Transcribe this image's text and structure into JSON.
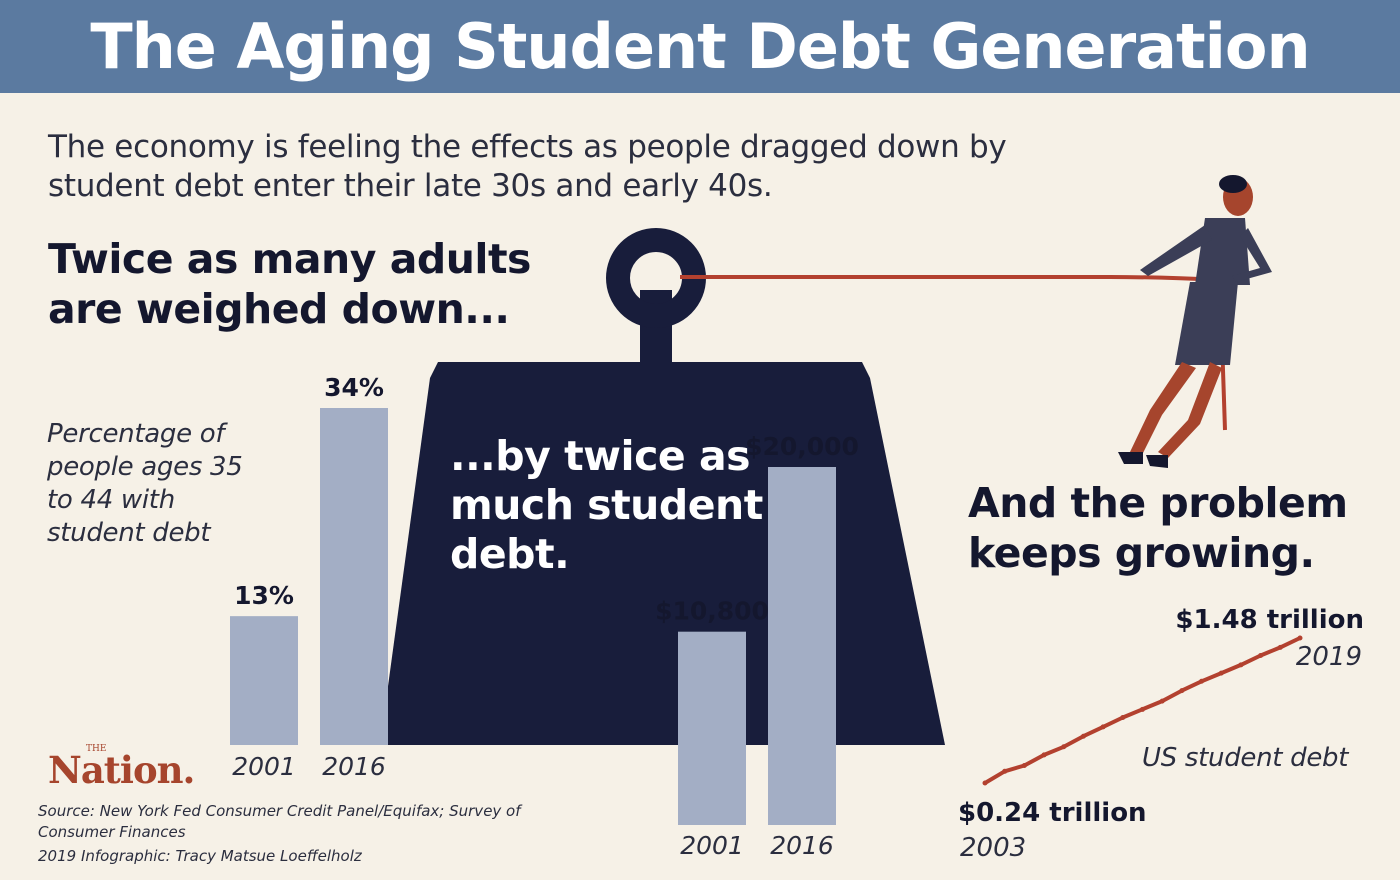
{
  "title": "The Aging Student Debt Generation",
  "subtitle": "The economy is feeling the effects as people dragged down by student debt enter their late 30s and early 40s.",
  "headline_left": "Twice as many adults are weighed down...",
  "headline_weight": "...by twice as much student debt.",
  "headline_right": "And the problem keeps growing.",
  "logo": {
    "text": "Nation.",
    "small": "THE"
  },
  "source_line": "Source: New York Fed Consumer Credit Panel/Equifax; Survey of Consumer Finances",
  "credit_line": "2019 Infographic: Tracy Matsue Loeffelholz",
  "colors": {
    "banner": "#5b7aa0",
    "background": "#f6f1e7",
    "bar": "#a3aec5",
    "weight": "#181d3b",
    "line": "#b3412f",
    "text": "#14172e"
  },
  "chart_data": [
    {
      "type": "bar",
      "description": "Percentage of people ages 35 to 44 with student debt",
      "label": "Percentage of people ages 35 to 44 with student debt",
      "categories": [
        "2001",
        "2016"
      ],
      "values": [
        13,
        34
      ],
      "value_labels": [
        "13%",
        "34%"
      ],
      "ylim": [
        0,
        34
      ]
    },
    {
      "type": "bar",
      "categories": [
        "2001",
        "2016"
      ],
      "values": [
        10800,
        20000
      ],
      "value_labels": [
        "$10,800",
        "$20,000"
      ],
      "ylim": [
        0,
        20000
      ]
    },
    {
      "type": "line",
      "label": "US student debt",
      "x": [
        2003,
        2004,
        2005,
        2006,
        2007,
        2008,
        2009,
        2010,
        2011,
        2012,
        2013,
        2014,
        2015,
        2016,
        2017,
        2018,
        2019
      ],
      "values": [
        0.24,
        0.34,
        0.39,
        0.48,
        0.55,
        0.64,
        0.72,
        0.8,
        0.87,
        0.94,
        1.03,
        1.11,
        1.18,
        1.25,
        1.33,
        1.4,
        1.48
      ],
      "start_label": "$0.24 trillion",
      "start_year_label": "2003",
      "end_label": "$1.48 trillion",
      "end_year_label": "2019"
    }
  ]
}
